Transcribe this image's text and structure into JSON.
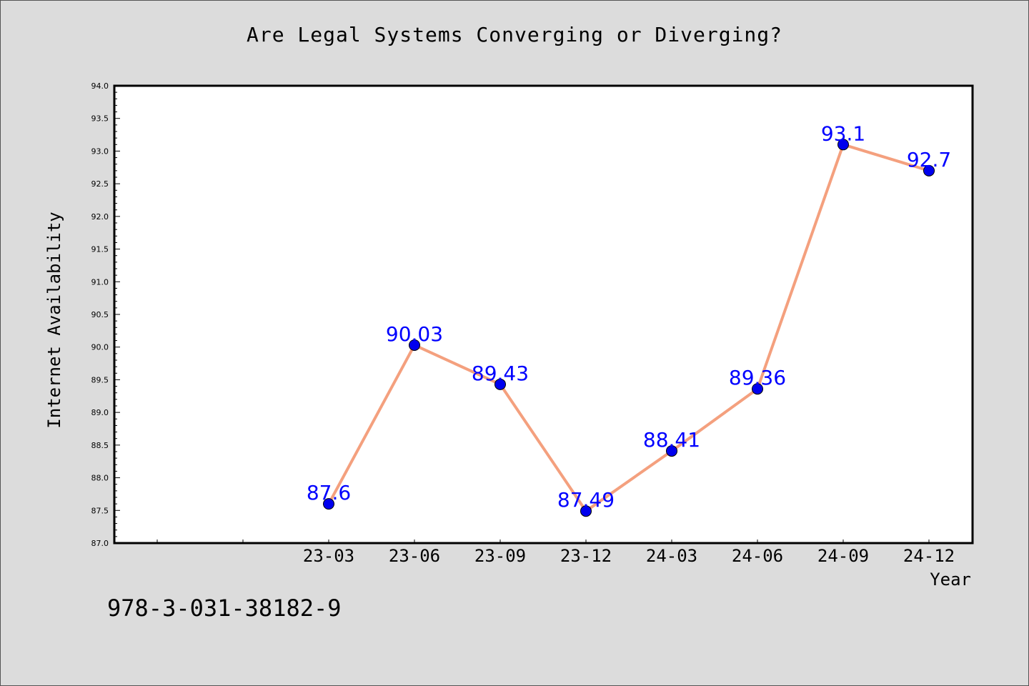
{
  "chart_data": {
    "type": "line",
    "title": "Are Legal Systems Converging or Diverging?",
    "xlabel": "Year",
    "ylabel": "Internet Availability",
    "categories": [
      "23-03",
      "23-06",
      "23-09",
      "23-12",
      "24-03",
      "24-06",
      "24-09",
      "24-12"
    ],
    "series": [
      {
        "values": [
          87.6,
          90.03,
          89.43,
          87.49,
          88.41,
          89.36,
          93.1,
          92.7
        ],
        "labels": [
          "87.6",
          "90.03",
          "89.43",
          "87.49",
          "88.41",
          "89.36",
          "93.1",
          "92.7"
        ]
      }
    ],
    "ylim": [
      87.0,
      94.0
    ],
    "yticks": [
      "87.0",
      "87.5",
      "88.0",
      "88.5",
      "89.0",
      "89.5",
      "90.0",
      "90.5",
      "91.0",
      "91.5",
      "92.0",
      "92.5",
      "93.0",
      "93.5",
      "94.0"
    ],
    "grid": false,
    "line_color": "#f4a07e",
    "marker_color": "#0000ee",
    "label_color": "#0000ff"
  },
  "footer_text": "978-3-031-38182-9"
}
